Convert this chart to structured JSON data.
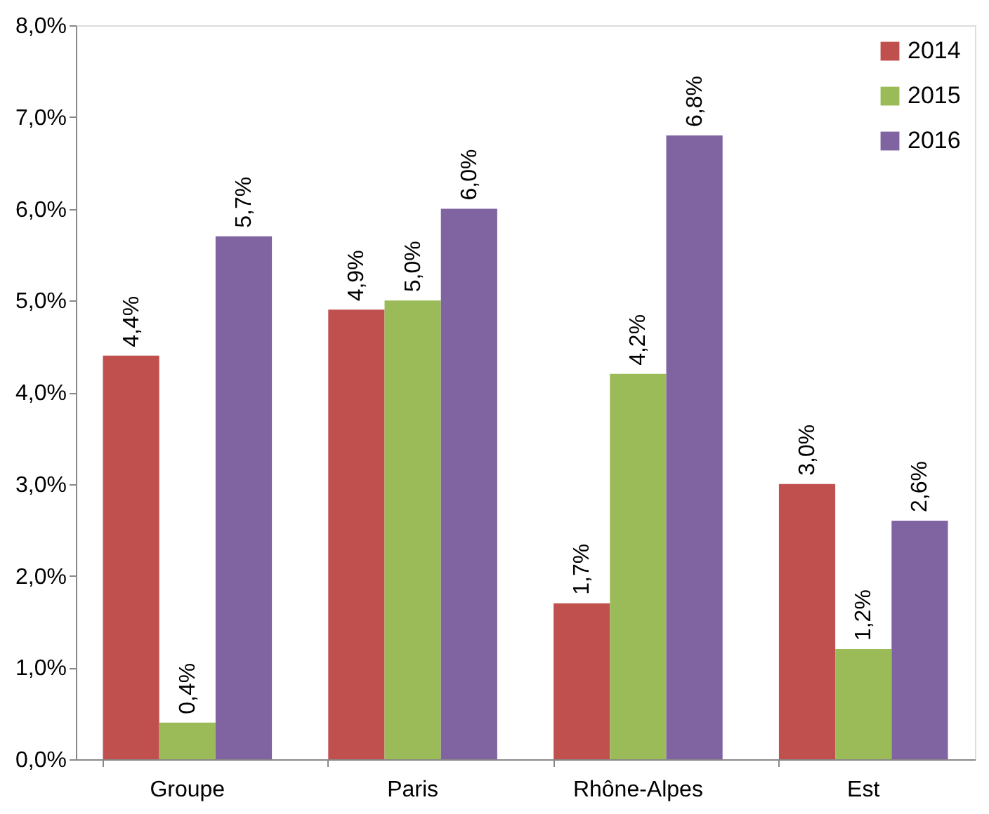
{
  "chart_data": {
    "type": "bar",
    "categories": [
      "Groupe",
      "Paris",
      "Rhône-Alpes",
      "Est"
    ],
    "series": [
      {
        "name": "2014",
        "color": "#c0504d",
        "values": [
          4.4,
          4.9,
          1.7,
          3.0
        ],
        "value_labels": [
          "4,4%",
          "4,9%",
          "1,7%",
          "3,0%"
        ]
      },
      {
        "name": "2015",
        "color": "#9bbb59",
        "values": [
          0.4,
          5.0,
          4.2,
          1.2
        ],
        "value_labels": [
          "0,4%",
          "5,0%",
          "4,2%",
          "1,2%"
        ]
      },
      {
        "name": "2016",
        "color": "#8064a2",
        "values": [
          5.7,
          6.0,
          6.8,
          2.6
        ],
        "value_labels": [
          "5,7%",
          "6,0%",
          "6,8%",
          "2,6%"
        ]
      }
    ],
    "ylim": [
      0,
      8
    ],
    "yticks": [
      {
        "value": 0,
        "label": "0,0%"
      },
      {
        "value": 1,
        "label": "1,0%"
      },
      {
        "value": 2,
        "label": "2,0%"
      },
      {
        "value": 3,
        "label": "3,0%"
      },
      {
        "value": 4,
        "label": "4,0%"
      },
      {
        "value": 5,
        "label": "5,0%"
      },
      {
        "value": 6,
        "label": "6,0%"
      },
      {
        "value": 7,
        "label": "7,0%"
      },
      {
        "value": 8,
        "label": "8,0%"
      }
    ],
    "grid": false,
    "legend": "top right"
  }
}
